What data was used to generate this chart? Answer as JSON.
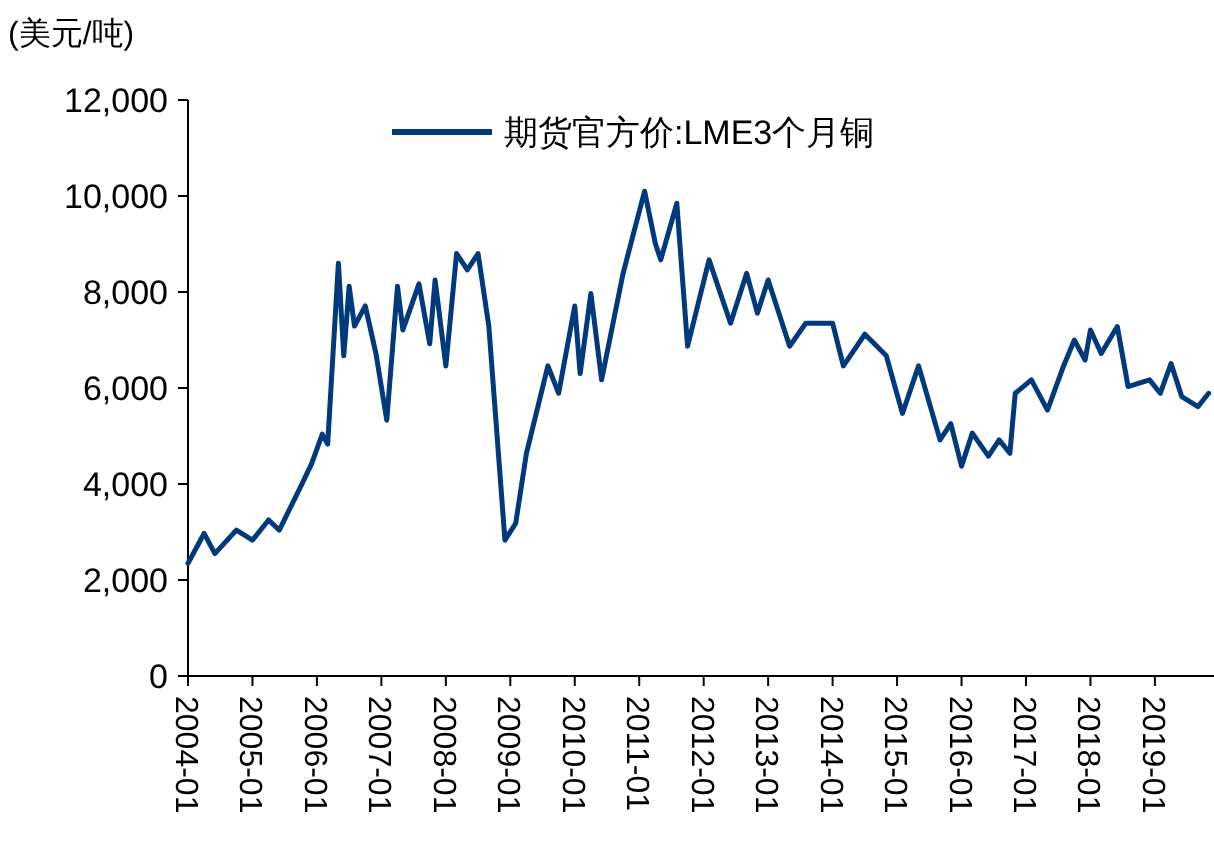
{
  "chart_data": {
    "type": "line",
    "ylabel": "(美元/吨)",
    "legend": "top",
    "grid": false,
    "marker": "none",
    "line_style": "solid",
    "ylim": [
      0,
      12000
    ],
    "yticks": [
      {
        "value": 0,
        "label": "0"
      },
      {
        "value": 2000,
        "label": "2,000"
      },
      {
        "value": 4000,
        "label": "4,000"
      },
      {
        "value": 6000,
        "label": "6,000"
      },
      {
        "value": 8000,
        "label": "8,000"
      },
      {
        "value": 10000,
        "label": "10,000"
      },
      {
        "value": 12000,
        "label": "12,000"
      }
    ],
    "xlim": [
      "2004-01",
      "2019-12"
    ],
    "xticks": [
      {
        "value": "2004-01",
        "label": "2004-01"
      },
      {
        "value": "2005-01",
        "label": "2005-01"
      },
      {
        "value": "2006-01",
        "label": "2006-01"
      },
      {
        "value": "2007-01",
        "label": "2007-01"
      },
      {
        "value": "2008-01",
        "label": "2008-01"
      },
      {
        "value": "2009-01",
        "label": "2009-01"
      },
      {
        "value": "2010-01",
        "label": "2010-01"
      },
      {
        "value": "2011-01",
        "label": "2011-01"
      },
      {
        "value": "2012-01",
        "label": "2012-01"
      },
      {
        "value": "2013-01",
        "label": "2013-01"
      },
      {
        "value": "2014-01",
        "label": "2014-01"
      },
      {
        "value": "2015-01",
        "label": "2015-01"
      },
      {
        "value": "2016-01",
        "label": "2016-01"
      },
      {
        "value": "2017-01",
        "label": "2017-01"
      },
      {
        "value": "2018-01",
        "label": "2018-01"
      },
      {
        "value": "2019-01",
        "label": "2019-01"
      }
    ],
    "x": [
      "2004-01",
      "2004-04",
      "2004-06",
      "2004-10",
      "2005-01",
      "2005-04",
      "2005-06",
      "2005-10",
      "2005-12",
      "2006-02",
      "2006-03",
      "2006-05",
      "2006-06",
      "2006-07",
      "2006-08",
      "2006-10",
      "2006-12",
      "2007-02",
      "2007-04",
      "2007-05",
      "2007-08",
      "2007-10",
      "2007-11",
      "2008-01",
      "2008-03",
      "2008-05",
      "2008-07",
      "2008-09",
      "2008-12",
      "2009-02",
      "2009-04",
      "2009-08",
      "2009-10",
      "2010-01",
      "2010-02",
      "2010-04",
      "2010-06",
      "2010-10",
      "2011-02",
      "2011-04",
      "2011-05",
      "2011-08",
      "2011-10",
      "2012-02",
      "2012-06",
      "2012-09",
      "2012-11",
      "2013-01",
      "2013-05",
      "2013-08",
      "2014-01",
      "2014-03",
      "2014-07",
      "2014-11",
      "2015-02",
      "2015-05",
      "2015-09",
      "2015-11",
      "2016-01",
      "2016-03",
      "2016-06",
      "2016-08",
      "2016-10",
      "2016-11",
      "2017-02",
      "2017-05",
      "2017-08",
      "2017-10",
      "2017-12",
      "2018-01",
      "2018-03",
      "2018-06",
      "2018-08",
      "2018-12",
      "2019-02",
      "2019-04",
      "2019-06",
      "2019-09",
      "2019-11"
    ],
    "series": [
      {
        "name": "期货官方价:LME3个月铜",
        "color": "#003a7d",
        "values": [
          2350,
          2970,
          2550,
          3040,
          2830,
          3250,
          3040,
          3950,
          4420,
          5040,
          4830,
          8600,
          6670,
          8120,
          7290,
          7710,
          6710,
          5330,
          8120,
          7210,
          8170,
          6920,
          8250,
          6460,
          8800,
          8460,
          8800,
          7290,
          2830,
          3180,
          4640,
          6460,
          5890,
          7710,
          6300,
          7970,
          6170,
          8390,
          10100,
          9010,
          8670,
          9850,
          6870,
          8670,
          7350,
          8390,
          7560,
          8250,
          6870,
          7350,
          7350,
          6460,
          7120,
          6670,
          5470,
          6460,
          4920,
          5260,
          4370,
          5060,
          4580,
          4920,
          4640,
          5890,
          6170,
          5540,
          6460,
          7000,
          6580,
          7210,
          6720,
          7280,
          6030,
          6170,
          5890,
          6510,
          5820,
          5610,
          5890
        ]
      }
    ]
  }
}
